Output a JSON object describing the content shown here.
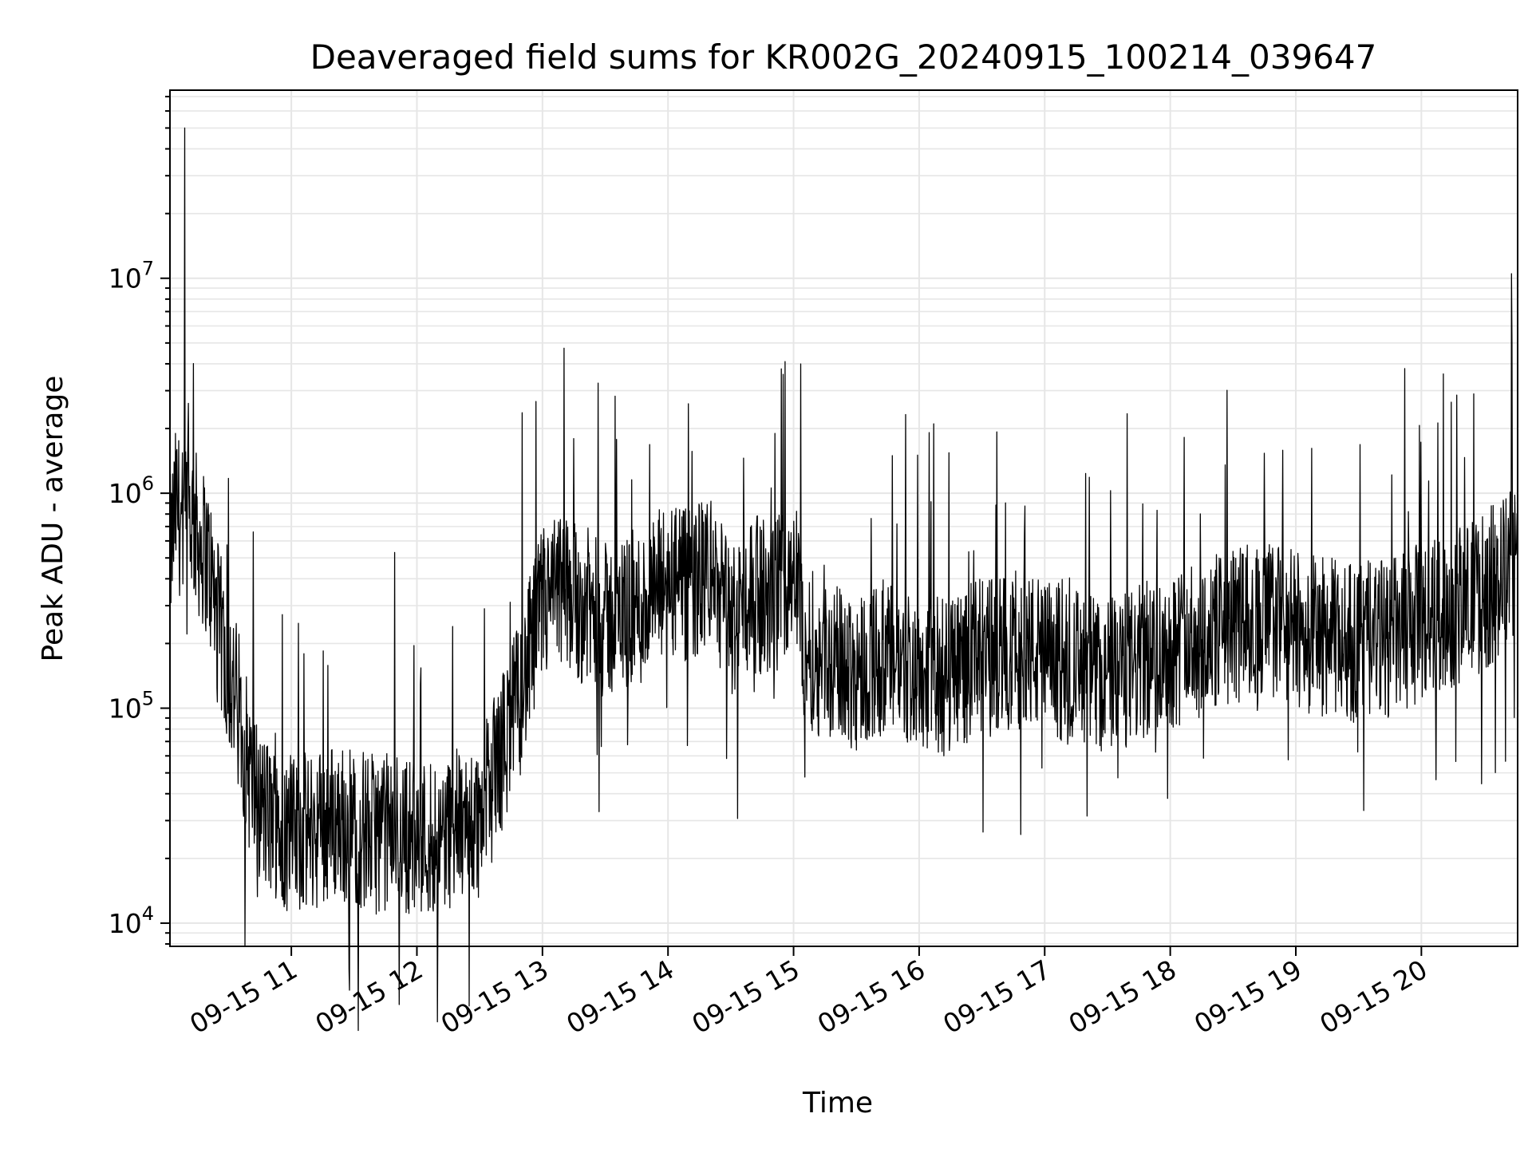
{
  "chart_data": {
    "type": "line",
    "title": "Deaveraged field sums for KR002G_20240915_100214_039647",
    "xlabel": "Time",
    "ylabel": "Peak ADU - average",
    "y_scale": "log",
    "ylim": [
      7800,
      75000000
    ],
    "xlim": [
      "2024-09-15 10:02",
      "2024-09-15 20:46"
    ],
    "grid": true,
    "x_ticks": [
      {
        "t": "2024-09-15 11:00",
        "label": "09-15 11"
      },
      {
        "t": "2024-09-15 12:00",
        "label": "09-15 12"
      },
      {
        "t": "2024-09-15 13:00",
        "label": "09-15 13"
      },
      {
        "t": "2024-09-15 14:00",
        "label": "09-15 14"
      },
      {
        "t": "2024-09-15 15:00",
        "label": "09-15 15"
      },
      {
        "t": "2024-09-15 16:00",
        "label": "09-15 16"
      },
      {
        "t": "2024-09-15 17:00",
        "label": "09-15 17"
      },
      {
        "t": "2024-09-15 18:00",
        "label": "09-15 18"
      },
      {
        "t": "2024-09-15 19:00",
        "label": "09-15 19"
      },
      {
        "t": "2024-09-15 20:00",
        "label": "09-15 20"
      }
    ],
    "y_ticks": [
      {
        "value": 10000,
        "label": "10^4"
      },
      {
        "value": 100000,
        "label": "10^5"
      },
      {
        "value": 1000000,
        "label": "10^6"
      },
      {
        "value": 10000000,
        "label": "10^7"
      }
    ],
    "series": [
      {
        "color": "#000000",
        "x": [
          "2024-09-15 10:02",
          "2024-09-15 10:05",
          "2024-09-15 10:08",
          "2024-09-15 10:12",
          "2024-09-15 10:16",
          "2024-09-15 10:20",
          "2024-09-15 10:25",
          "2024-09-15 10:30",
          "2024-09-15 10:35",
          "2024-09-15 10:40",
          "2024-09-15 10:45",
          "2024-09-15 10:50",
          "2024-09-15 10:55",
          "2024-09-15 11:00",
          "2024-09-15 11:10",
          "2024-09-15 11:20",
          "2024-09-15 11:30",
          "2024-09-15 11:40",
          "2024-09-15 11:50",
          "2024-09-15 12:00",
          "2024-09-15 12:10",
          "2024-09-15 12:20",
          "2024-09-15 12:30",
          "2024-09-15 12:40",
          "2024-09-15 12:50",
          "2024-09-15 13:00",
          "2024-09-15 13:10",
          "2024-09-15 13:20",
          "2024-09-15 13:30",
          "2024-09-15 13:40",
          "2024-09-15 13:50",
          "2024-09-15 14:00",
          "2024-09-15 14:10",
          "2024-09-15 14:20",
          "2024-09-15 14:30",
          "2024-09-15 14:40",
          "2024-09-15 14:50",
          "2024-09-15 15:00",
          "2024-09-15 15:05",
          "2024-09-15 15:10",
          "2024-09-15 15:20",
          "2024-09-15 15:30",
          "2024-09-15 15:40",
          "2024-09-15 15:50",
          "2024-09-15 16:00",
          "2024-09-15 16:10",
          "2024-09-15 16:20",
          "2024-09-15 16:30",
          "2024-09-15 16:40",
          "2024-09-15 16:50",
          "2024-09-15 17:00",
          "2024-09-15 17:10",
          "2024-09-15 17:20",
          "2024-09-15 17:30",
          "2024-09-15 17:40",
          "2024-09-15 17:50",
          "2024-09-15 18:00",
          "2024-09-15 18:10",
          "2024-09-15 18:20",
          "2024-09-15 18:30",
          "2024-09-15 18:40",
          "2024-09-15 18:50",
          "2024-09-15 19:00",
          "2024-09-15 19:10",
          "2024-09-15 19:20",
          "2024-09-15 19:30",
          "2024-09-15 19:40",
          "2024-09-15 19:50",
          "2024-09-15 20:00",
          "2024-09-15 20:10",
          "2024-09-15 20:20",
          "2024-09-15 20:30",
          "2024-09-15 20:40",
          "2024-09-15 20:46"
        ],
        "y": [
          500000,
          900000,
          700000,
          800000,
          600000,
          500000,
          250000,
          150000,
          100000,
          50000,
          35000,
          30000,
          28000,
          25000,
          27000,
          30000,
          28000,
          26000,
          27000,
          25000,
          26000,
          28000,
          30000,
          60000,
          120000,
          300000,
          350000,
          300000,
          250000,
          280000,
          300000,
          400000,
          350000,
          450000,
          250000,
          350000,
          300000,
          500000,
          200000,
          180000,
          160000,
          150000,
          170000,
          160000,
          150000,
          140000,
          160000,
          170000,
          180000,
          190000,
          170000,
          160000,
          150000,
          140000,
          150000,
          170000,
          190000,
          200000,
          220000,
          240000,
          250000,
          260000,
          230000,
          220000,
          210000,
          200000,
          210000,
          220000,
          250000,
          280000,
          300000,
          350000,
          420000,
          500000
        ],
        "peaks": [
          {
            "t": "2024-09-15 10:09",
            "y": 50000000
          },
          {
            "t": "2024-09-15 20:43",
            "y": 10500000
          },
          {
            "t": "2024-09-15 14:56",
            "y": 4100000
          },
          {
            "t": "2024-09-15 19:52",
            "y": 3800000
          },
          {
            "t": "2024-09-15 20:25",
            "y": 2900000
          }
        ]
      }
    ]
  }
}
